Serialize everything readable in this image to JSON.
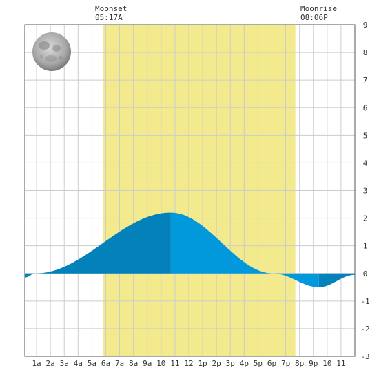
{
  "chart_data": {
    "type": "area",
    "x_unit": "hours since midnight",
    "x_ticks": [
      {
        "x": 1,
        "label": "1a"
      },
      {
        "x": 2,
        "label": "2a"
      },
      {
        "x": 3,
        "label": "3a"
      },
      {
        "x": 4,
        "label": "4a"
      },
      {
        "x": 5,
        "label": "5a"
      },
      {
        "x": 6,
        "label": "6a"
      },
      {
        "x": 7,
        "label": "7a"
      },
      {
        "x": 8,
        "label": "8a"
      },
      {
        "x": 9,
        "label": "9a"
      },
      {
        "x": 10,
        "label": "10"
      },
      {
        "x": 11,
        "label": "11"
      },
      {
        "x": 12,
        "label": "12"
      },
      {
        "x": 13,
        "label": "1p"
      },
      {
        "x": 14,
        "label": "2p"
      },
      {
        "x": 15,
        "label": "3p"
      },
      {
        "x": 16,
        "label": "4p"
      },
      {
        "x": 17,
        "label": "5p"
      },
      {
        "x": 18,
        "label": "6p"
      },
      {
        "x": 19,
        "label": "7p"
      },
      {
        "x": 20,
        "label": "8p"
      },
      {
        "x": 21,
        "label": "9p"
      },
      {
        "x": 22,
        "label": "10"
      },
      {
        "x": 23,
        "label": "11"
      }
    ],
    "xlim": [
      0.15,
      24
    ],
    "ylim": [
      -3,
      9
    ],
    "y_ticks": [
      -3,
      -2,
      -1,
      0,
      1,
      2,
      3,
      4,
      5,
      6,
      7,
      8,
      9
    ],
    "y_axis_side": "right",
    "grid": true,
    "daylight_band": [
      5.8,
      19.7
    ],
    "tide_points": [
      {
        "x": 0.15,
        "y": -0.15
      },
      {
        "x": 0.9,
        "y": 0.0
      },
      {
        "x": 10.7,
        "y": 2.2
      },
      {
        "x": 18.1,
        "y": 0.0
      },
      {
        "x": 21.4,
        "y": -0.5
      },
      {
        "x": 24.0,
        "y": -0.05
      }
    ],
    "segments": [
      {
        "from": 0.15,
        "to": 10.7,
        "color": "#0281bb"
      },
      {
        "from": 10.7,
        "to": 21.4,
        "color": "#0299dc"
      },
      {
        "from": 21.4,
        "to": 24.0,
        "color": "#0281bb"
      }
    ]
  },
  "moon": {
    "set_label": "Moonset",
    "set_time": "05:17A",
    "rise_label": "Moonrise",
    "rise_time": "08:06P",
    "phase_icon": "full-moon-icon"
  },
  "colors": {
    "daylight": "#f2ea8c",
    "grid": "#cccccc",
    "border": "#555555",
    "tide_rising": "#0281bb",
    "tide_falling": "#0299dc"
  }
}
